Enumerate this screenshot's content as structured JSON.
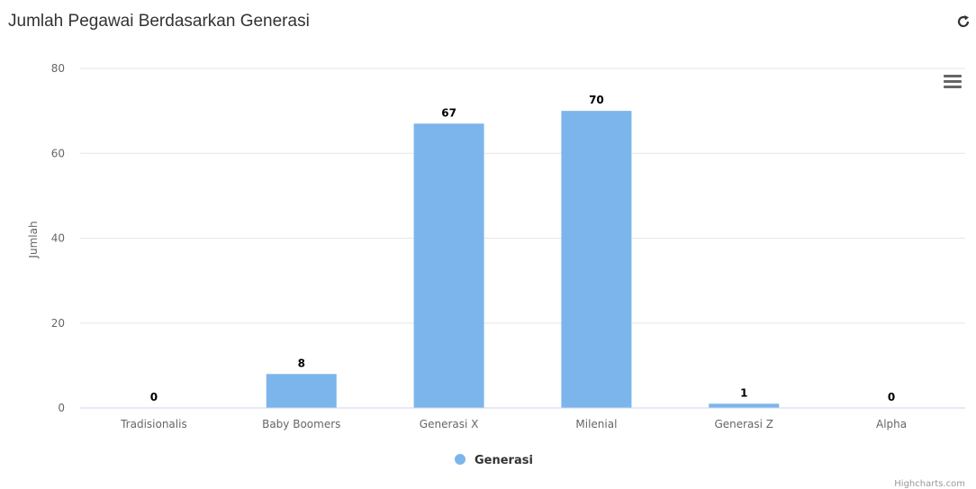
{
  "panel": {
    "title": "Jumlah Pegawai Berdasarkan Generasi"
  },
  "icons": {
    "refresh": "refresh-icon",
    "menu": "hamburger-menu-icon"
  },
  "colors": {
    "bar": "#7cb5ec",
    "grid": "#e6e6e6",
    "axis_line": "#ccd6eb"
  },
  "credits": "Highcharts.com",
  "chart_data": {
    "type": "bar",
    "categories": [
      "Tradisionalis",
      "Baby Boomers",
      "Generasi X",
      "Milenial",
      "Generasi Z",
      "Alpha"
    ],
    "series": [
      {
        "name": "Generasi",
        "values": [
          0,
          8,
          67,
          70,
          1,
          0
        ]
      }
    ],
    "xlabel": "",
    "ylabel": "Jumlah",
    "ylim": [
      0,
      80
    ],
    "yticks": [
      0,
      20,
      40,
      60,
      80
    ],
    "grid": true,
    "legend": "bottom-center",
    "data_labels": true
  }
}
